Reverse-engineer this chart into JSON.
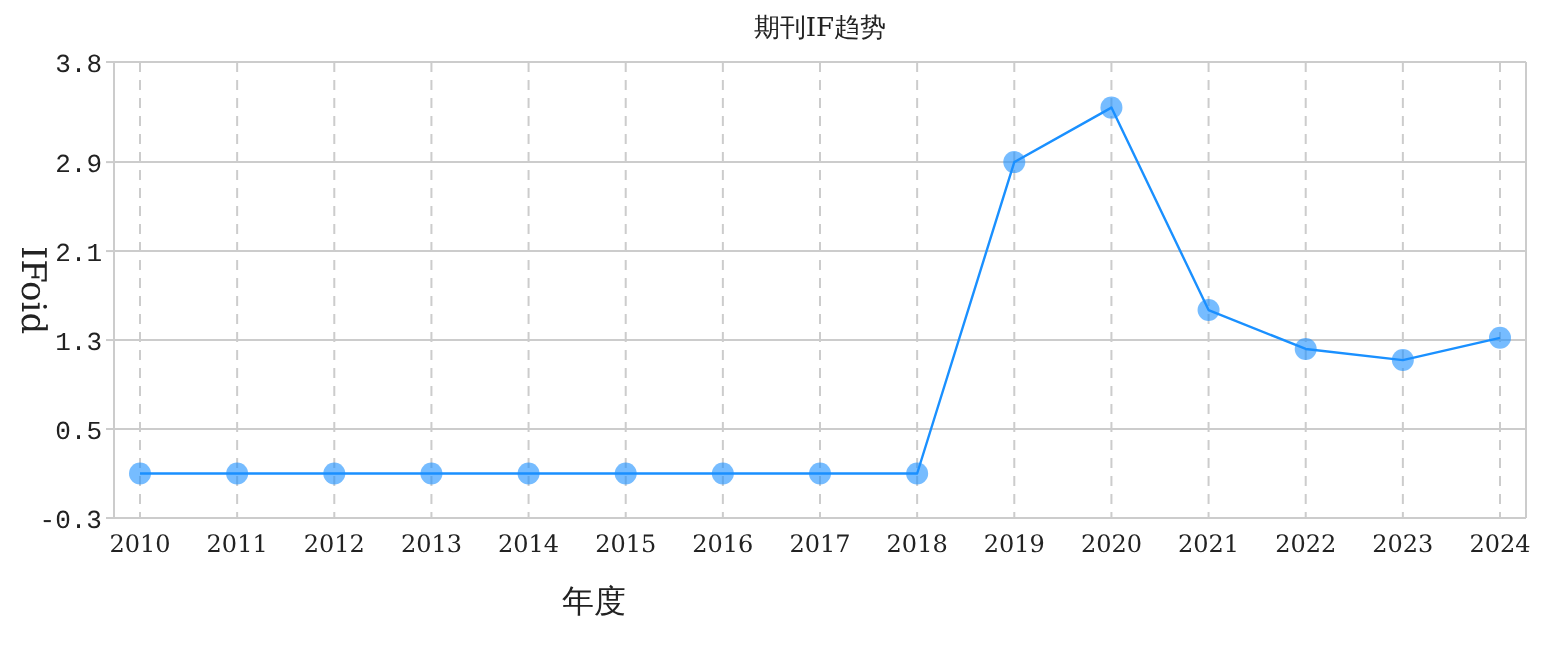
{
  "chart_data": {
    "type": "line",
    "title": "期刊IF趋势",
    "xlabel": "年度",
    "ylabel": "IFoid",
    "categories": [
      "2010",
      "2011",
      "2012",
      "2013",
      "2014",
      "2015",
      "2016",
      "2017",
      "2018",
      "2019",
      "2020",
      "2021",
      "2022",
      "2023",
      "2024"
    ],
    "series": [
      {
        "color": "#1a90ff",
        "values": [
          0.1,
          0.1,
          0.1,
          0.1,
          0.1,
          0.1,
          0.1,
          0.1,
          0.1,
          2.9,
          3.39,
          1.57,
          1.22,
          1.12,
          1.32
        ]
      }
    ],
    "ylim": [
      -0.3,
      3.8
    ],
    "yticks": [
      -0.3,
      0.5,
      1.3,
      2.1,
      2.9,
      3.8
    ],
    "grid": true,
    "marker": "circle",
    "line_style": "solid"
  }
}
